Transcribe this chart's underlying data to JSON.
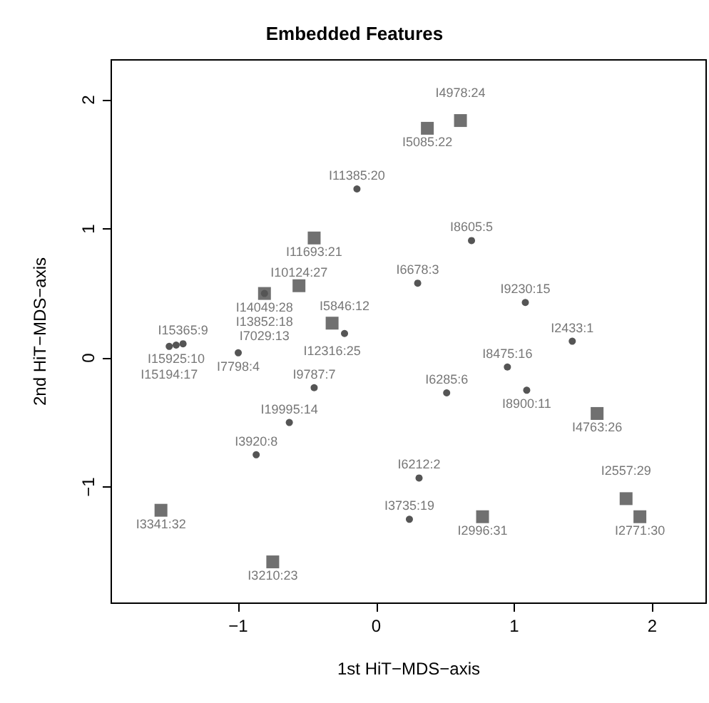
{
  "chart_data": {
    "type": "scatter",
    "title": "Embedded Features",
    "xlabel": "1st HiT−MDS−axis",
    "ylabel": "2nd HiT−MDS−axis",
    "xlim": [
      -1.92,
      2.39
    ],
    "ylim": [
      -1.9,
      2.31
    ],
    "xticks": [
      -1,
      0,
      1,
      2
    ],
    "yticks": [
      -1,
      0,
      1,
      2
    ],
    "grid": false,
    "series": [
      {
        "marker": "square",
        "color": "#707070",
        "x": [
          0.61,
          0.37,
          -0.45,
          -0.56,
          -0.81,
          -0.32,
          1.6,
          1.81,
          -1.56,
          0.77,
          1.91,
          -0.75
        ],
        "values": [
          1.84,
          1.78,
          0.93,
          0.56,
          0.5,
          0.27,
          -0.43,
          -1.09,
          -1.18,
          -1.23,
          -1.23,
          -1.58
        ]
      },
      {
        "marker": "circle",
        "color": "#555555",
        "x": [
          -0.14,
          0.69,
          -0.81,
          0.3,
          1.08,
          -0.23,
          1.42,
          -1.4,
          -1.45,
          -1.5,
          -1.0,
          0.95,
          0.51,
          1.09,
          -0.45,
          -0.63,
          -0.87,
          0.31,
          0.24
        ],
        "values": [
          1.31,
          0.91,
          0.5,
          0.58,
          0.43,
          0.19,
          0.13,
          0.11,
          0.1,
          0.09,
          0.04,
          -0.07,
          -0.27,
          -0.25,
          -0.23,
          -0.5,
          -0.75,
          -0.93,
          -1.25
        ]
      }
    ],
    "annotations": [
      {
        "text": "I4978:24",
        "x": 0.61,
        "y": 1.84
      },
      {
        "text": "I5085:22",
        "x": 0.37,
        "y": 1.78
      },
      {
        "text": "I11385:20",
        "x": -0.14,
        "y": 1.31
      },
      {
        "text": "I11693:21",
        "x": -0.45,
        "y": 0.93
      },
      {
        "text": "I8605:5",
        "x": 0.69,
        "y": 0.91
      },
      {
        "text": "I10124:27",
        "x": -0.56,
        "y": 0.56
      },
      {
        "text": "I6678:3",
        "x": 0.3,
        "y": 0.58
      },
      {
        "text": "I14049:28",
        "x": -0.81,
        "y": 0.5
      },
      {
        "text": "I13852:18",
        "x": -0.81,
        "y": 0.5
      },
      {
        "text": "I9230:15",
        "x": 1.08,
        "y": 0.43
      },
      {
        "text": "I12316:25",
        "x": -0.32,
        "y": 0.27
      },
      {
        "text": "I7029:13",
        "x": -0.81,
        "y": 0.5
      },
      {
        "text": "I5846:12",
        "x": -0.23,
        "y": 0.19
      },
      {
        "text": "I2433:1",
        "x": 1.42,
        "y": 0.13
      },
      {
        "text": "I15365:9",
        "x": -1.4,
        "y": 0.11
      },
      {
        "text": "I15925:10",
        "x": -1.45,
        "y": 0.1
      },
      {
        "text": "I15194:17",
        "x": -1.5,
        "y": 0.09
      },
      {
        "text": "I7798:4",
        "x": -1.0,
        "y": 0.04
      },
      {
        "text": "I8475:16",
        "x": 0.95,
        "y": -0.07
      },
      {
        "text": "I6285:6",
        "x": 0.51,
        "y": -0.27
      },
      {
        "text": "I8900:11",
        "x": 1.09,
        "y": -0.25
      },
      {
        "text": "I9787:7",
        "x": -0.45,
        "y": -0.23
      },
      {
        "text": "I4763:26",
        "x": 1.6,
        "y": -0.43
      },
      {
        "text": "I19995:14",
        "x": -0.63,
        "y": -0.5
      },
      {
        "text": "I3920:8",
        "x": -0.87,
        "y": -0.75
      },
      {
        "text": "I6212:2",
        "x": 0.31,
        "y": -0.93
      },
      {
        "text": "I2557:29",
        "x": 1.81,
        "y": -1.09
      },
      {
        "text": "I3341:32",
        "x": -1.56,
        "y": -1.18
      },
      {
        "text": "I3735:19",
        "x": 0.24,
        "y": -1.25
      },
      {
        "text": "I2996:31",
        "x": 0.77,
        "y": -1.23
      },
      {
        "text": "I2771:30",
        "x": 1.91,
        "y": -1.23
      },
      {
        "text": "I3210:23",
        "x": -0.75,
        "y": -1.58
      }
    ]
  }
}
